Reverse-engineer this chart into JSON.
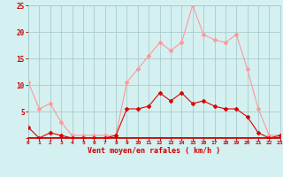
{
  "hours": [
    0,
    1,
    2,
    3,
    4,
    5,
    6,
    7,
    8,
    9,
    10,
    11,
    12,
    13,
    14,
    15,
    16,
    17,
    18,
    19,
    20,
    21,
    22,
    23
  ],
  "vent_moyen": [
    2,
    0,
    1,
    0.5,
    0,
    0,
    0,
    0,
    0.5,
    5.5,
    5.5,
    6,
    8.5,
    7,
    8.5,
    6.5,
    7,
    6,
    5.5,
    5.5,
    4,
    1,
    0,
    0.5
  ],
  "rafales": [
    10.5,
    5.5,
    6.5,
    3,
    0.5,
    0.5,
    0.5,
    0.5,
    0.5,
    10.5,
    13,
    15.5,
    18,
    16.5,
    18,
    25,
    19.5,
    18.5,
    18,
    19.5,
    13,
    5.5,
    0.5,
    0.5
  ],
  "color_moyen": "#dd0000",
  "color_rafales": "#ff9999",
  "bg_color": "#d4f0f0",
  "grid_color": "#aacccc",
  "axis_color": "#cc0000",
  "xlabel": "Vent moyen/en rafales ( km/h )",
  "ylim": [
    0,
    25
  ],
  "yticks": [
    0,
    5,
    10,
    15,
    20,
    25
  ],
  "marker_size_moyen": 2.0,
  "marker_size_rafales": 2.0,
  "linewidth": 0.8
}
